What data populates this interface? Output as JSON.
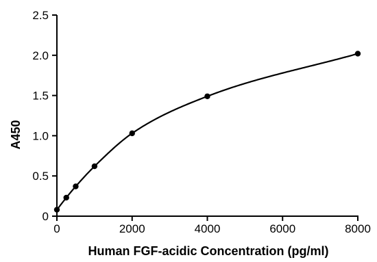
{
  "chart_data": {
    "type": "scatter",
    "title": "",
    "xlabel": "Human FGF-acidic Concentration (pg/ml)",
    "ylabel": "A450",
    "xlim": [
      0,
      8000
    ],
    "ylim": [
      0,
      2.5
    ],
    "xticks": [
      0,
      2000,
      4000,
      6000,
      8000
    ],
    "xtick_labels": [
      "0",
      "2000",
      "4000",
      "6000",
      "8000"
    ],
    "yticks": [
      0,
      0.5,
      1.0,
      1.5,
      2.0,
      2.5
    ],
    "ytick_labels": [
      "0",
      "0.5",
      "1.0",
      "1.5",
      "2.0",
      "2.5"
    ],
    "grid": false,
    "legend": "none",
    "series": [
      {
        "x": [
          0,
          250,
          500,
          1000,
          2000,
          4000,
          8000
        ],
        "y": [
          0.08,
          0.23,
          0.37,
          0.62,
          1.03,
          1.49,
          2.02
        ],
        "marker": "filled-circle",
        "fit_line": "smooth-curve",
        "color": "#000000"
      }
    ]
  }
}
